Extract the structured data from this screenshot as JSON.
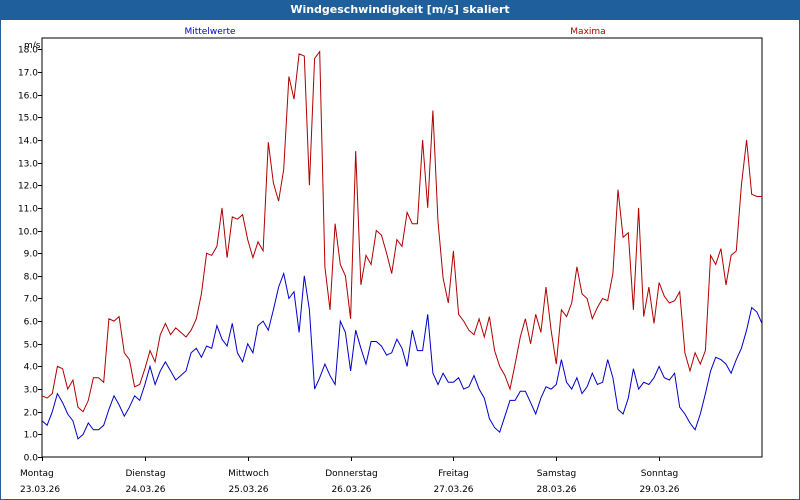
{
  "header": {
    "title": "Windgeschwindigkeit [m/s] skaliert"
  },
  "chart_data": {
    "type": "line",
    "title": "Windgeschwindigkeit [m/s] skaliert",
    "ylabel": "m/s",
    "xlabel": "",
    "ylim": [
      0,
      18.5
    ],
    "xlim": [
      0,
      7
    ],
    "grid": true,
    "yticks": [
      "0.0",
      "1.0",
      "2.0",
      "3.0",
      "4.0",
      "5.0",
      "6.0",
      "7.0",
      "8.0",
      "9.0",
      "10.0",
      "11.0",
      "12.0",
      "13.0",
      "14.0",
      "15.0",
      "16.0",
      "17.0",
      "18.0"
    ],
    "day_labels": [
      {
        "day": "Montag",
        "date": "23.03.26"
      },
      {
        "day": "Dienstag",
        "date": "24.03.26"
      },
      {
        "day": "Mittwoch",
        "date": "25.03.26"
      },
      {
        "day": "Donnerstag",
        "date": "26.03.26"
      },
      {
        "day": "Freitag",
        "date": "27.03.26"
      },
      {
        "day": "Samstag",
        "date": "28.03.26"
      },
      {
        "day": "Sonntag",
        "date": "29.03.26"
      }
    ],
    "series": [
      {
        "name": "Mittelwerte",
        "color": "#0000c8",
        "points": [
          [
            0,
            1.6
          ],
          [
            0.05,
            1.4
          ],
          [
            0.1,
            2.0
          ],
          [
            0.15,
            2.8
          ],
          [
            0.2,
            2.4
          ],
          [
            0.25,
            1.9
          ],
          [
            0.3,
            1.6
          ],
          [
            0.35,
            0.8
          ],
          [
            0.4,
            1.0
          ],
          [
            0.45,
            1.5
          ],
          [
            0.5,
            1.2
          ],
          [
            0.55,
            1.2
          ],
          [
            0.6,
            1.4
          ],
          [
            0.65,
            2.1
          ],
          [
            0.7,
            2.7
          ],
          [
            0.75,
            2.3
          ],
          [
            0.8,
            1.8
          ],
          [
            0.85,
            2.2
          ],
          [
            0.9,
            2.7
          ],
          [
            0.95,
            2.5
          ],
          [
            1.0,
            3.2
          ],
          [
            1.05,
            4.0
          ],
          [
            1.1,
            3.2
          ],
          [
            1.15,
            3.8
          ],
          [
            1.2,
            4.2
          ],
          [
            1.25,
            3.8
          ],
          [
            1.3,
            3.4
          ],
          [
            1.35,
            3.6
          ],
          [
            1.4,
            3.8
          ],
          [
            1.45,
            4.6
          ],
          [
            1.5,
            4.8
          ],
          [
            1.55,
            4.4
          ],
          [
            1.6,
            4.9
          ],
          [
            1.65,
            4.8
          ],
          [
            1.7,
            5.8
          ],
          [
            1.75,
            5.2
          ],
          [
            1.8,
            4.9
          ],
          [
            1.85,
            5.9
          ],
          [
            1.9,
            4.6
          ],
          [
            1.95,
            4.2
          ],
          [
            2.0,
            5.0
          ],
          [
            2.05,
            4.6
          ],
          [
            2.1,
            5.8
          ],
          [
            2.15,
            6.0
          ],
          [
            2.2,
            5.6
          ],
          [
            2.25,
            6.5
          ],
          [
            2.3,
            7.5
          ],
          [
            2.35,
            8.1
          ],
          [
            2.4,
            7.0
          ],
          [
            2.45,
            7.3
          ],
          [
            2.5,
            5.5
          ],
          [
            2.55,
            8.0
          ],
          [
            2.6,
            6.5
          ],
          [
            2.65,
            3.0
          ],
          [
            2.7,
            3.5
          ],
          [
            2.75,
            4.1
          ],
          [
            2.8,
            3.6
          ],
          [
            2.85,
            3.2
          ],
          [
            2.9,
            6.0
          ],
          [
            2.95,
            5.5
          ],
          [
            3.0,
            3.8
          ],
          [
            3.05,
            5.6
          ],
          [
            3.1,
            4.8
          ],
          [
            3.15,
            4.1
          ],
          [
            3.2,
            5.1
          ],
          [
            3.25,
            5.1
          ],
          [
            3.3,
            4.9
          ],
          [
            3.35,
            4.5
          ],
          [
            3.4,
            4.6
          ],
          [
            3.45,
            5.2
          ],
          [
            3.5,
            4.8
          ],
          [
            3.55,
            4.0
          ],
          [
            3.6,
            5.6
          ],
          [
            3.65,
            4.7
          ],
          [
            3.7,
            4.7
          ],
          [
            3.75,
            6.3
          ],
          [
            3.8,
            3.7
          ],
          [
            3.85,
            3.2
          ],
          [
            3.9,
            3.7
          ],
          [
            3.95,
            3.3
          ],
          [
            4.0,
            3.3
          ],
          [
            4.05,
            3.5
          ],
          [
            4.1,
            3.0
          ],
          [
            4.15,
            3.1
          ],
          [
            4.2,
            3.6
          ],
          [
            4.25,
            3.0
          ],
          [
            4.3,
            2.6
          ],
          [
            4.35,
            1.7
          ],
          [
            4.4,
            1.3
          ],
          [
            4.45,
            1.1
          ],
          [
            4.5,
            1.8
          ],
          [
            4.55,
            2.5
          ],
          [
            4.6,
            2.5
          ],
          [
            4.65,
            2.9
          ],
          [
            4.7,
            2.9
          ],
          [
            4.75,
            2.4
          ],
          [
            4.8,
            1.9
          ],
          [
            4.85,
            2.6
          ],
          [
            4.9,
            3.1
          ],
          [
            4.95,
            3.0
          ],
          [
            5.0,
            3.2
          ],
          [
            5.05,
            4.3
          ],
          [
            5.1,
            3.3
          ],
          [
            5.15,
            3.0
          ],
          [
            5.2,
            3.5
          ],
          [
            5.25,
            2.8
          ],
          [
            5.3,
            3.1
          ],
          [
            5.35,
            3.7
          ],
          [
            5.4,
            3.2
          ],
          [
            5.45,
            3.3
          ],
          [
            5.5,
            4.3
          ],
          [
            5.55,
            3.5
          ],
          [
            5.6,
            2.1
          ],
          [
            5.65,
            1.9
          ],
          [
            5.7,
            2.6
          ],
          [
            5.75,
            3.9
          ],
          [
            5.8,
            3.0
          ],
          [
            5.85,
            3.3
          ],
          [
            5.9,
            3.2
          ],
          [
            5.95,
            3.5
          ],
          [
            6.0,
            4.0
          ],
          [
            6.05,
            3.5
          ],
          [
            6.1,
            3.4
          ],
          [
            6.15,
            3.7
          ],
          [
            6.2,
            2.2
          ],
          [
            6.25,
            1.9
          ],
          [
            6.3,
            1.5
          ],
          [
            6.35,
            1.2
          ],
          [
            6.4,
            1.9
          ],
          [
            6.45,
            2.8
          ],
          [
            6.5,
            3.8
          ],
          [
            6.55,
            4.4
          ],
          [
            6.6,
            4.3
          ],
          [
            6.65,
            4.1
          ],
          [
            6.7,
            3.7
          ],
          [
            6.75,
            4.3
          ],
          [
            6.8,
            4.8
          ],
          [
            6.85,
            5.6
          ],
          [
            6.9,
            6.6
          ],
          [
            6.95,
            6.4
          ],
          [
            7.0,
            5.9
          ]
        ]
      },
      {
        "name": "Maxima",
        "color": "#b00000",
        "points": [
          [
            0,
            2.7
          ],
          [
            0.05,
            2.6
          ],
          [
            0.1,
            2.8
          ],
          [
            0.15,
            4.0
          ],
          [
            0.2,
            3.9
          ],
          [
            0.25,
            3.0
          ],
          [
            0.3,
            3.4
          ],
          [
            0.35,
            2.2
          ],
          [
            0.4,
            2.0
          ],
          [
            0.45,
            2.5
          ],
          [
            0.5,
            3.5
          ],
          [
            0.55,
            3.5
          ],
          [
            0.6,
            3.3
          ],
          [
            0.65,
            6.1
          ],
          [
            0.7,
            6.0
          ],
          [
            0.75,
            6.2
          ],
          [
            0.8,
            4.6
          ],
          [
            0.85,
            4.3
          ],
          [
            0.9,
            3.1
          ],
          [
            0.95,
            3.2
          ],
          [
            1.0,
            3.9
          ],
          [
            1.05,
            4.7
          ],
          [
            1.1,
            4.2
          ],
          [
            1.15,
            5.4
          ],
          [
            1.2,
            5.9
          ],
          [
            1.25,
            5.4
          ],
          [
            1.3,
            5.7
          ],
          [
            1.35,
            5.5
          ],
          [
            1.4,
            5.3
          ],
          [
            1.45,
            5.6
          ],
          [
            1.5,
            6.1
          ],
          [
            1.55,
            7.2
          ],
          [
            1.6,
            9.0
          ],
          [
            1.65,
            8.9
          ],
          [
            1.7,
            9.3
          ],
          [
            1.75,
            11.0
          ],
          [
            1.8,
            8.8
          ],
          [
            1.85,
            10.6
          ],
          [
            1.9,
            10.5
          ],
          [
            1.95,
            10.7
          ],
          [
            2.0,
            9.6
          ],
          [
            2.05,
            8.8
          ],
          [
            2.1,
            9.5
          ],
          [
            2.15,
            9.1
          ],
          [
            2.2,
            13.9
          ],
          [
            2.25,
            12.1
          ],
          [
            2.3,
            11.3
          ],
          [
            2.35,
            12.7
          ],
          [
            2.4,
            16.8
          ],
          [
            2.45,
            15.8
          ],
          [
            2.5,
            17.8
          ],
          [
            2.55,
            17.7
          ],
          [
            2.6,
            12.0
          ],
          [
            2.65,
            17.6
          ],
          [
            2.7,
            17.9
          ],
          [
            2.75,
            8.4
          ],
          [
            2.8,
            6.5
          ],
          [
            2.85,
            10.3
          ],
          [
            2.9,
            8.5
          ],
          [
            2.95,
            8.0
          ],
          [
            3.0,
            6.1
          ],
          [
            3.05,
            13.5
          ],
          [
            3.1,
            7.6
          ],
          [
            3.15,
            8.9
          ],
          [
            3.2,
            8.5
          ],
          [
            3.25,
            10.0
          ],
          [
            3.3,
            9.8
          ],
          [
            3.35,
            9.0
          ],
          [
            3.4,
            8.1
          ],
          [
            3.45,
            9.6
          ],
          [
            3.5,
            9.3
          ],
          [
            3.55,
            10.8
          ],
          [
            3.6,
            10.3
          ],
          [
            3.65,
            10.3
          ],
          [
            3.7,
            14.0
          ],
          [
            3.75,
            11.0
          ],
          [
            3.8,
            15.3
          ],
          [
            3.85,
            10.4
          ],
          [
            3.9,
            7.9
          ],
          [
            3.95,
            6.8
          ],
          [
            4.0,
            9.1
          ],
          [
            4.05,
            6.3
          ],
          [
            4.1,
            6.0
          ],
          [
            4.15,
            5.6
          ],
          [
            4.2,
            5.4
          ],
          [
            4.25,
            6.1
          ],
          [
            4.3,
            5.3
          ],
          [
            4.35,
            6.2
          ],
          [
            4.4,
            4.7
          ],
          [
            4.45,
            4.0
          ],
          [
            4.5,
            3.6
          ],
          [
            4.55,
            3.0
          ],
          [
            4.6,
            4.1
          ],
          [
            4.65,
            5.3
          ],
          [
            4.7,
            6.1
          ],
          [
            4.75,
            5.0
          ],
          [
            4.8,
            6.3
          ],
          [
            4.85,
            5.5
          ],
          [
            4.9,
            7.5
          ],
          [
            4.95,
            5.6
          ],
          [
            5.0,
            4.1
          ],
          [
            5.05,
            6.5
          ],
          [
            5.1,
            6.2
          ],
          [
            5.15,
            6.8
          ],
          [
            5.2,
            8.4
          ],
          [
            5.25,
            7.2
          ],
          [
            5.3,
            7.0
          ],
          [
            5.35,
            6.1
          ],
          [
            5.4,
            6.6
          ],
          [
            5.45,
            7.0
          ],
          [
            5.5,
            6.9
          ],
          [
            5.55,
            8.1
          ],
          [
            5.6,
            11.8
          ],
          [
            5.65,
            9.7
          ],
          [
            5.7,
            9.9
          ],
          [
            5.75,
            6.5
          ],
          [
            5.8,
            11.0
          ],
          [
            5.85,
            6.2
          ],
          [
            5.9,
            7.5
          ],
          [
            5.95,
            5.9
          ],
          [
            6.0,
            7.7
          ],
          [
            6.05,
            7.1
          ],
          [
            6.1,
            6.8
          ],
          [
            6.15,
            6.9
          ],
          [
            6.2,
            7.3
          ],
          [
            6.25,
            4.6
          ],
          [
            6.3,
            3.8
          ],
          [
            6.35,
            4.6
          ],
          [
            6.4,
            4.1
          ],
          [
            6.45,
            4.7
          ],
          [
            6.5,
            8.9
          ],
          [
            6.55,
            8.5
          ],
          [
            6.6,
            9.2
          ],
          [
            6.65,
            7.6
          ],
          [
            6.7,
            8.9
          ],
          [
            6.75,
            9.1
          ],
          [
            6.8,
            12.0
          ],
          [
            6.85,
            14.0
          ],
          [
            6.9,
            11.6
          ],
          [
            6.95,
            11.5
          ],
          [
            7.0,
            11.5
          ]
        ]
      }
    ]
  }
}
